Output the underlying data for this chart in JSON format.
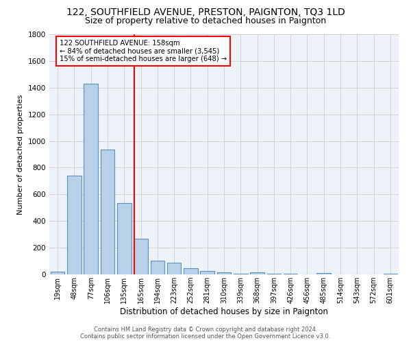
{
  "title": "122, SOUTHFIELD AVENUE, PRESTON, PAIGNTON, TQ3 1LD",
  "subtitle": "Size of property relative to detached houses in Paignton",
  "xlabel": "Distribution of detached houses by size in Paignton",
  "ylabel": "Number of detached properties",
  "footer_line1": "Contains HM Land Registry data © Crown copyright and database right 2024.",
  "footer_line2": "Contains public sector information licensed under the Open Government Licence v3.0.",
  "bin_labels": [
    "19sqm",
    "48sqm",
    "77sqm",
    "106sqm",
    "135sqm",
    "165sqm",
    "194sqm",
    "223sqm",
    "252sqm",
    "281sqm",
    "310sqm",
    "339sqm",
    "368sqm",
    "397sqm",
    "426sqm",
    "456sqm",
    "485sqm",
    "514sqm",
    "543sqm",
    "572sqm",
    "601sqm"
  ],
  "bar_values": [
    20,
    740,
    1430,
    935,
    535,
    265,
    103,
    88,
    47,
    27,
    15,
    5,
    13,
    3,
    3,
    0,
    10,
    0,
    0,
    0,
    5
  ],
  "bar_color": "#b8d0e8",
  "bar_edge_color": "#5a90c0",
  "annotation_text_line1": "122 SOUTHFIELD AVENUE: 158sqm",
  "annotation_text_line2": "← 84% of detached houses are smaller (3,545)",
  "annotation_text_line3": "15% of semi-detached houses are larger (648) →",
  "annotation_box_color": "white",
  "annotation_box_edge": "red",
  "red_line_color": "red",
  "background_color": "#eef3fa",
  "grid_color": "#cccccc",
  "ylim": [
    0,
    1800
  ],
  "red_line_x": 4.6
}
